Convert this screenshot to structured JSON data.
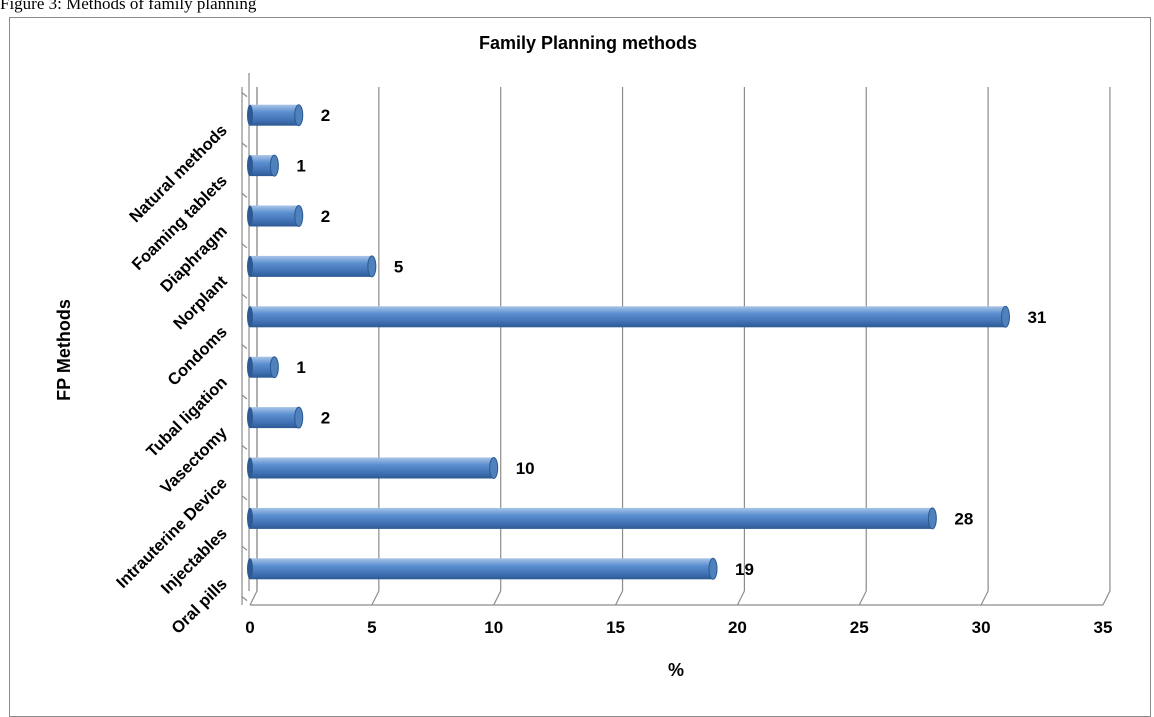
{
  "caption": "Figure 3: Methods of family planning",
  "chart_data": {
    "type": "bar",
    "orientation": "horizontal",
    "title": "Family Planning methods",
    "xlabel": "%",
    "ylabel": "FP Methods",
    "categories": [
      "Oral pills",
      "Injectables",
      "Intrauterine Device",
      "Vasectomy",
      "Tubal ligation",
      "Condoms",
      "Norplant",
      "Diaphragm",
      "Foaming tablets",
      "Natural methods"
    ],
    "values": [
      19,
      28,
      10,
      2,
      1,
      31,
      5,
      2,
      1,
      2
    ],
    "data_labels": [
      "19",
      "28",
      "10",
      "2",
      "1",
      "31",
      "5",
      "2",
      "1",
      "2"
    ],
    "xlim": [
      0,
      35
    ],
    "xticks": [
      "0",
      "5",
      "10",
      "15",
      "20",
      "25",
      "30",
      "35"
    ],
    "grid": "vertical",
    "legend": "none",
    "colors": {
      "bar": "#4f81bd",
      "bar_dark": "#2c5a92",
      "bar_light": "#a9c4e8",
      "grid": "#8c8c8c"
    }
  }
}
